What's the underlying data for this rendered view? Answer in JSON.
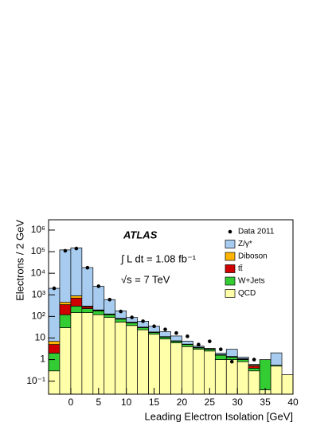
{
  "chart_data": {
    "type": "stacked-histogram",
    "x_label": "Leading Electron Isolation [GeV]",
    "y_label": "Electrons / 2 GeV",
    "annotations": [
      "ATLAS",
      "∫ L dt = 1.08 fb⁻¹",
      "√s = 7 TeV"
    ],
    "log_y": true,
    "bins": [
      -4,
      -2,
      0,
      2,
      4,
      6,
      8,
      10,
      12,
      14,
      16,
      18,
      20,
      22,
      24,
      26,
      28,
      30,
      32,
      34,
      36,
      38,
      40
    ],
    "series": [
      {
        "name": "Z/γ*",
        "color": "#a8ccf0",
        "values": [
          2000,
          120000,
          150000,
          18000,
          2300,
          470,
          100,
          36,
          28,
          16,
          8,
          5,
          2,
          0.5,
          0.2,
          0.3,
          1.6,
          0.2,
          0.05,
          0,
          1.5,
          0
        ]
      },
      {
        "name": "Diboson",
        "color": "#ffb400",
        "values": [
          2,
          100,
          200,
          20,
          10,
          5,
          3,
          2,
          1,
          0.5,
          0.3,
          0.2,
          0.1,
          0.1,
          0.05,
          0.05,
          0.05,
          0.05,
          0.05,
          0,
          0,
          0
        ]
      },
      {
        "name": "tt̄",
        "color": "#d00000",
        "values": [
          3,
          230,
          400,
          50,
          10,
          5,
          3,
          2,
          1,
          0.5,
          0.3,
          0.2,
          0.1,
          0.1,
          0.05,
          0.05,
          0.05,
          0.05,
          0.1,
          0,
          0,
          0
        ]
      },
      {
        "name": "W+Jets",
        "color": "#33cc33",
        "values": [
          1.7,
          90,
          150,
          80,
          60,
          30,
          20,
          12,
          6,
          3,
          2,
          1,
          1,
          0.5,
          0.5,
          0.6,
          0.3,
          0.2,
          0.1,
          0.96,
          0.05,
          0
        ]
      },
      {
        "name": "QCD",
        "color": "#ffffaa",
        "values": [
          0.3,
          30,
          150,
          150,
          120,
          90,
          55,
          38,
          24,
          15,
          9,
          6,
          4,
          3,
          2.5,
          1,
          1,
          0.8,
          0.3,
          0.04,
          0.5,
          0.2
        ]
      }
    ],
    "data_points": {
      "name": "Data 2011",
      "color": "#000000",
      "values": [
        2000,
        110000,
        140000,
        18000,
        2500,
        600,
        170,
        90,
        60,
        35,
        25,
        17,
        12,
        5,
        7,
        3,
        0.8,
        null,
        1,
        null,
        null,
        null
      ]
    },
    "xlim": [
      -4,
      40
    ],
    "xticks": [
      0,
      5,
      10,
      15,
      20,
      25,
      30,
      35,
      40
    ],
    "ylim": [
      0.025,
      3000000
    ],
    "yticks": [
      {
        "value": 0.1,
        "label": "10⁻¹"
      },
      1,
      10,
      {
        "value": 100,
        "label": "10²"
      },
      {
        "value": 1000,
        "label": "10³"
      },
      {
        "value": 10000,
        "label": "10⁴"
      },
      {
        "value": 100000,
        "label": "10⁵"
      },
      {
        "value": 1000000,
        "label": "10⁶"
      }
    ],
    "legend": "top-right"
  }
}
